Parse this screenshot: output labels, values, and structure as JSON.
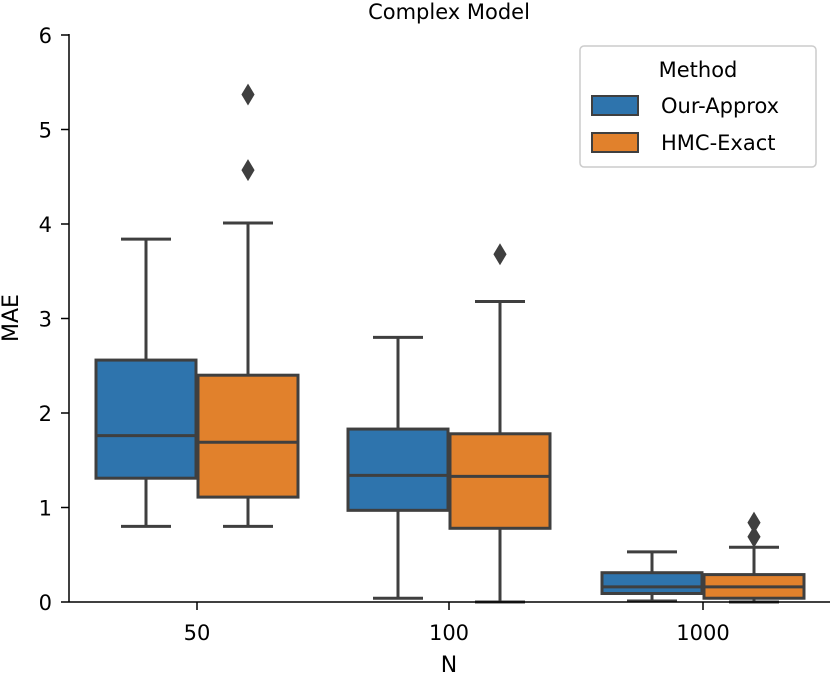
{
  "chart_data": {
    "type": "boxplot",
    "title": "Complex Model",
    "xlabel": "N",
    "ylabel": "MAE",
    "ylim": [
      0,
      6
    ],
    "yticks": [
      "0",
      "1",
      "2",
      "3",
      "4",
      "5",
      "6"
    ],
    "categories": [
      "50",
      "100",
      "1000"
    ],
    "legend": {
      "title": "Method",
      "placement": "top-right"
    },
    "series": [
      {
        "name": "Our-Approx",
        "color": "#2e74ad",
        "boxes": [
          {
            "category": "50",
            "whisker_low": 0.8,
            "q1": 1.31,
            "median": 1.76,
            "q3": 2.56,
            "whisker_high": 3.84,
            "outliers": []
          },
          {
            "category": "100",
            "whisker_low": 0.04,
            "q1": 0.97,
            "median": 1.34,
            "q3": 1.83,
            "whisker_high": 2.8,
            "outliers": []
          },
          {
            "category": "1000",
            "whisker_low": 0.01,
            "q1": 0.09,
            "median": 0.16,
            "q3": 0.31,
            "whisker_high": 0.53,
            "outliers": []
          }
        ]
      },
      {
        "name": "HMC-Exact",
        "color": "#e1812c",
        "boxes": [
          {
            "category": "50",
            "whisker_low": 0.8,
            "q1": 1.11,
            "median": 1.69,
            "q3": 2.4,
            "whisker_high": 4.01,
            "outliers": [
              4.57,
              5.37
            ]
          },
          {
            "category": "100",
            "whisker_low": 0.0,
            "q1": 0.78,
            "median": 1.33,
            "q3": 1.78,
            "whisker_high": 3.18,
            "outliers": [
              3.68
            ]
          },
          {
            "category": "1000",
            "whisker_low": 0.0,
            "q1": 0.04,
            "median": 0.16,
            "q3": 0.29,
            "whisker_high": 0.58,
            "outliers": [
              0.69,
              0.84
            ]
          }
        ]
      }
    ]
  }
}
